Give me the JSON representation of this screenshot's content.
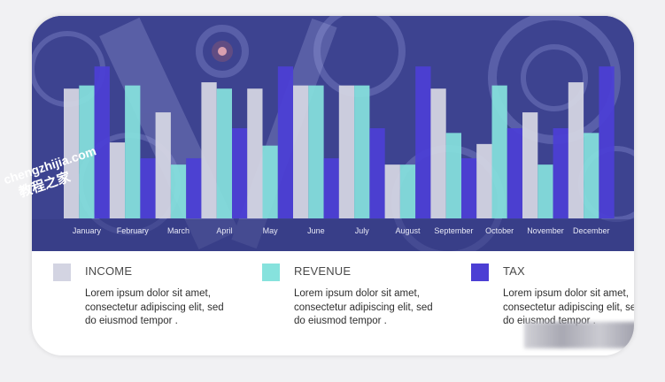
{
  "colors": {
    "income": "#d3d4e2",
    "revenue": "#86e2dd",
    "tax": "#4c3fd4",
    "banner": "#3e4491"
  },
  "chart_data": {
    "type": "bar",
    "categories": [
      "January",
      "February",
      "March",
      "April",
      "May",
      "June",
      "July",
      "August",
      "September",
      "October",
      "November",
      "December"
    ],
    "series": [
      {
        "name": "INCOME",
        "values": [
          82,
          48,
          67,
          86,
          82,
          84,
          84,
          34,
          82,
          47,
          67,
          86
        ]
      },
      {
        "name": "REVENUE",
        "values": [
          84,
          84,
          34,
          82,
          46,
          84,
          84,
          34,
          54,
          84,
          34,
          54
        ]
      },
      {
        "name": "TAX",
        "values": [
          96,
          38,
          38,
          57,
          96,
          38,
          57,
          96,
          38,
          57,
          57,
          96
        ]
      }
    ],
    "ylim": [
      0,
      100
    ],
    "grid": false,
    "legend_position": "bottom"
  },
  "legend": [
    {
      "label": "INCOME",
      "desc": "Lorem ipsum dolor sit amet, consectetur adipiscing elit, sed do eiusmod tempor ."
    },
    {
      "label": "REVENUE",
      "desc": "Lorem ipsum dolor sit amet, consectetur adipiscing elit, sed do eiusmod tempor ."
    },
    {
      "label": "TAX",
      "desc": "Lorem ipsum dolor sit amet, consectetur adipiscing elit, sed do eiusmod tempor ."
    }
  ],
  "watermark": {
    "line1": "chengzhijia.com",
    "line2": "教程之家"
  }
}
